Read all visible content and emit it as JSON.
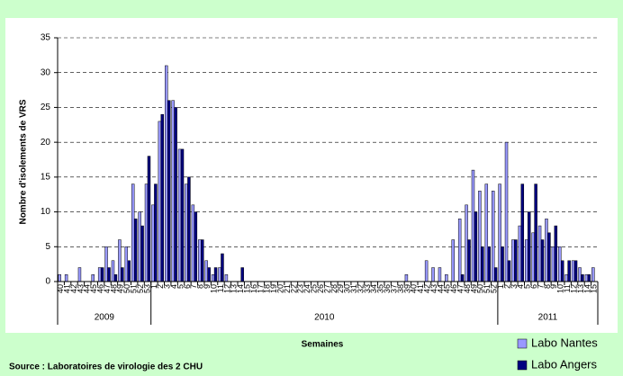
{
  "chart_data": {
    "type": "bar",
    "y_label": "Nombre d'isolements de VRS",
    "x_label": "Semaines",
    "source": "Source : Laboratoires de virologie des 2 CHU",
    "groups": [
      "2009",
      "2010",
      "2011"
    ],
    "categories": [
      "40",
      "41",
      "42",
      "43",
      "44",
      "45",
      "46",
      "47",
      "48",
      "49",
      "50",
      "51",
      "52",
      "53",
      "1",
      "2",
      "3",
      "4",
      "5",
      "6",
      "7",
      "8",
      "9",
      "10",
      "11",
      "12",
      "13",
      "14",
      "15",
      "16",
      "17",
      "18",
      "19",
      "20",
      "21",
      "22",
      "23",
      "24",
      "25",
      "26",
      "27",
      "28",
      "29",
      "30",
      "31",
      "32",
      "33",
      "34",
      "35",
      "36",
      "37",
      "38",
      "39",
      "40",
      "41",
      "42",
      "43",
      "44",
      "45",
      "46",
      "47",
      "48",
      "49",
      "50",
      "51",
      "52",
      "1",
      "2",
      "3",
      "4",
      "5",
      "6",
      "7",
      "8",
      "9",
      "10",
      "11",
      "12",
      "13",
      "14",
      "15"
    ],
    "series": [
      {
        "name": "Labo Nantes",
        "color": "#9999ff",
        "values": [
          1,
          1,
          0,
          2,
          0,
          1,
          2,
          5,
          3,
          6,
          5,
          14,
          10,
          14,
          11,
          23,
          31,
          26,
          19,
          14,
          11,
          6,
          3,
          1,
          2,
          1,
          0,
          0,
          0,
          0,
          0,
          0,
          0,
          0,
          0,
          0,
          0,
          0,
          0,
          0,
          0,
          0,
          0,
          0,
          0,
          0,
          0,
          0,
          0,
          0,
          0,
          0,
          1,
          0,
          0,
          3,
          2,
          2,
          1,
          6,
          9,
          11,
          16,
          13,
          14,
          13,
          14,
          20,
          6,
          8,
          6,
          7,
          8,
          9,
          5,
          5,
          1,
          3,
          2,
          1,
          2
        ]
      },
      {
        "name": "Labo Angers",
        "color": "#000080",
        "values": [
          0,
          0,
          0,
          0,
          0,
          0,
          2,
          2,
          1,
          2,
          3,
          9,
          8,
          18,
          14,
          24,
          26,
          25,
          19,
          15,
          10,
          6,
          2,
          2,
          4,
          0,
          0,
          2,
          0,
          0,
          0,
          0,
          0,
          0,
          0,
          0,
          0,
          0,
          0,
          0,
          0,
          0,
          0,
          0,
          0,
          0,
          0,
          0,
          0,
          0,
          0,
          0,
          0,
          0,
          0,
          0,
          0,
          0,
          0,
          0,
          1,
          6,
          10,
          5,
          5,
          2,
          5,
          3,
          6,
          14,
          10,
          14,
          6,
          7,
          8,
          3,
          3,
          3,
          1,
          1,
          0
        ]
      }
    ],
    "ylim": [
      0,
      35
    ],
    "yticks": [
      0,
      5,
      10,
      15,
      20,
      25,
      30,
      35
    ],
    "grid": true,
    "legend": "bottom-right"
  }
}
